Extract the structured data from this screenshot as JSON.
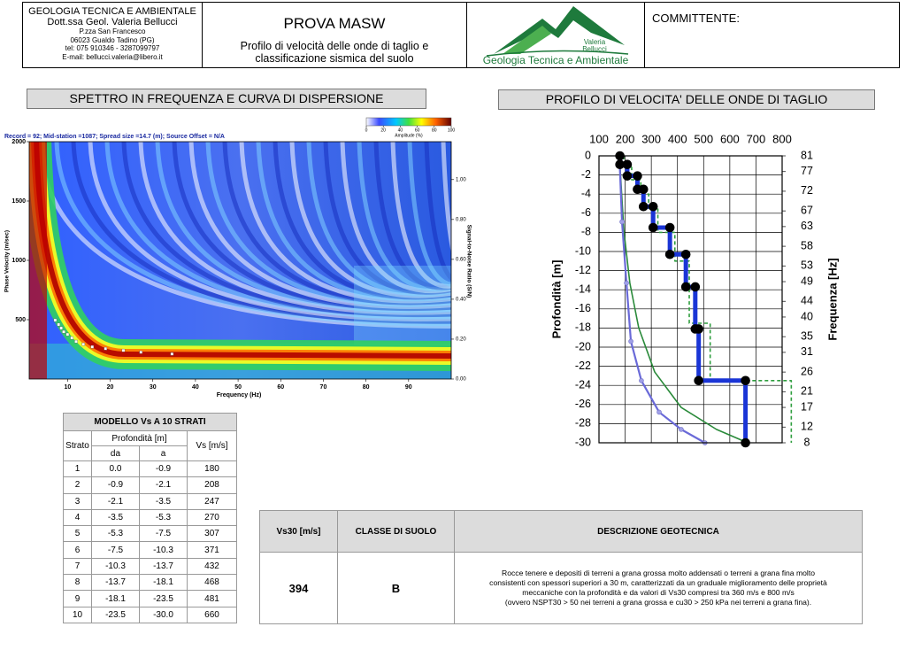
{
  "header": {
    "company": "GEOLOGIA TECNICA E AMBIENTALE",
    "person": "Dott.ssa Geol. Valeria Bellucci",
    "address1": "P.zza San Francesco",
    "address2": "06023 Gualdo Tadino (PG)",
    "phone": "tel: 075 910346 - 3287099797",
    "email": "E-mail: bellucci.valeria@libero.it",
    "title": "PROVA MASW",
    "subtitle_lines": [
      "Profilo di velocità delle onde di taglio e",
      "classificazione sismica del suolo"
    ],
    "logo_name_lines": [
      "Valeria",
      "Bellucci"
    ],
    "logo_text": "Geologia Tecnica e Ambientale",
    "client": "COMMITTENTE:"
  },
  "chart_data": [
    {
      "type": "heatmap",
      "title": "SPETTRO IN FREQUENZA E CURVA DI DISPERSIONE",
      "subtitle": "Record = 92; Mid-station =1087; Spread size =14.7 (m); Source Offset = N/A",
      "x_label": "Frequency (Hz)",
      "y_label": "Phase Velocity (m/sec)",
      "y2_label": "Signal-to-Noise Ratio (S/N)",
      "colorbar_label": "Amplitude (%)",
      "colorbar_ticks": [
        0,
        20,
        40,
        60,
        80,
        100
      ],
      "xlim": [
        1,
        100
      ],
      "xticks": [
        10,
        20,
        30,
        40,
        50,
        60,
        70,
        80,
        90
      ],
      "ylim": [
        0,
        2000
      ],
      "yticks": [
        500,
        1000,
        1500,
        2000
      ],
      "y2lim": [
        0,
        1.19
      ],
      "y2ticks": [
        {
          "value": 0,
          "label": "0.00"
        },
        {
          "value": 0.2,
          "label": "0.20"
        },
        {
          "value": 0.4,
          "label": "0.40"
        },
        {
          "value": 0.6,
          "label": "0.60"
        },
        {
          "value": 0.8,
          "label": "0.80"
        },
        {
          "value": 1,
          "label": "1.00"
        }
      ],
      "x": [
        7.1,
        7.9,
        8.5,
        9.1,
        10,
        11,
        12,
        13.7,
        15.8,
        18.9,
        23.1,
        27.2,
        34.5
      ],
      "values": [
        496,
        459,
        429,
        398,
        376,
        346,
        316,
        293,
        271,
        256,
        241,
        226,
        211
      ],
      "color": "#ffffff"
    },
    {
      "type": "line",
      "title": "PROFILO DI VELOCITA' DELLE ONDE DI TAGLIO",
      "y_label": "Profondità [m]",
      "y2_label": "Frequenza [Hz]",
      "xlim": [
        100,
        800
      ],
      "xticks": [
        100,
        200,
        300,
        400,
        500,
        600,
        700,
        800
      ],
      "ylim": [
        -30,
        0
      ],
      "yticks": [
        0,
        -2,
        -4,
        -6,
        -8,
        -10,
        -12,
        -14,
        -16,
        -18,
        -20,
        -22,
        -24,
        -26,
        -28,
        -30
      ],
      "y2lim": [
        8,
        81
      ],
      "y2ticks": [
        81,
        77,
        72,
        67,
        63,
        58,
        53,
        49,
        44,
        40,
        35,
        31,
        26,
        21,
        17,
        12,
        8
      ],
      "grid": true,
      "series": [
        {
          "color": "#2e9e3e",
          "dash": true,
          "x": [
            195,
            195,
            225,
            225,
            260,
            260,
            290,
            290,
            325,
            325,
            390,
            390,
            445,
            445,
            525,
            525,
            835,
            835
          ],
          "values": [
            0,
            -1.2,
            -1.2,
            -2.5,
            -2.5,
            -4,
            -4,
            -5.5,
            -5.5,
            -8,
            -8,
            -11,
            -11,
            -17.5,
            -17.5,
            -23.5,
            -23.5,
            -30
          ]
        },
        {
          "color": "#2a8a3a",
          "x": [
            178,
            195,
            218,
            252,
            313,
            414,
            549,
            668
          ],
          "values": [
            0,
            -7.8,
            -13.3,
            -18,
            -22.6,
            -26.3,
            -28.6,
            -30
          ]
        },
        {
          "color": "#6a6ad8",
          "marker": "small",
          "x": [
            178,
            188,
            205,
            222,
            262,
            330,
            414,
            505
          ],
          "values": [
            0,
            -6.9,
            -13.3,
            -19.4,
            -23.5,
            -26.8,
            -28.6,
            -30
          ]
        },
        {
          "color": "#1a35d6",
          "marker": "large",
          "x": [
            180,
            180,
            208,
            208,
            247,
            247,
            270,
            270,
            307,
            307,
            371,
            371,
            432,
            432,
            468,
            468,
            481,
            481,
            660,
            660
          ],
          "values": [
            0,
            -0.9,
            -0.9,
            -2.1,
            -2.1,
            -3.5,
            -3.5,
            -5.3,
            -5.3,
            -7.5,
            -7.5,
            -10.3,
            -10.3,
            -13.7,
            -13.7,
            -18.1,
            -18.1,
            -23.5,
            -23.5,
            -30
          ]
        }
      ]
    }
  ],
  "model_table": {
    "title": "MODELLO Vs A 10 STRATI",
    "headers": {
      "layer": "Strato",
      "depth": "Profondità [m]",
      "from": "da",
      "to": "a",
      "vs": "Vs [m/s]"
    },
    "rows": [
      [
        "1",
        "0.0",
        "-0.9",
        "180"
      ],
      [
        "2",
        "-0.9",
        "-2.1",
        "208"
      ],
      [
        "3",
        "-2.1",
        "-3.5",
        "247"
      ],
      [
        "4",
        "-3.5",
        "-5.3",
        "270"
      ],
      [
        "5",
        "-5.3",
        "-7.5",
        "307"
      ],
      [
        "6",
        "-7.5",
        "-10.3",
        "371"
      ],
      [
        "7",
        "-10.3",
        "-13.7",
        "432"
      ],
      [
        "8",
        "-13.7",
        "-18.1",
        "468"
      ],
      [
        "9",
        "-18.1",
        "-23.5",
        "481"
      ],
      [
        "10",
        "-23.5",
        "-30.0",
        "660"
      ]
    ]
  },
  "classification": {
    "headers": [
      "Vs30 [m/s]",
      "CLASSE DI SUOLO",
      "DESCRIZIONE GEOTECNICA"
    ],
    "vs30": "394",
    "class": "B",
    "description_lines": [
      "Rocce tenere e depositi di terreni a grana grossa molto addensati o terreni a grana fina molto",
      "consistenti con spessori superiori a 30 m, caratterizzati da un graduale miglioramento delle proprietà",
      "meccaniche con la profondità e da valori di Vs30 compresi tra 360 m/s e 800 m/s",
      "(ovvero NSPT30 > 50 nei terreni a grana grossa e cu30 > 250 kPa nei terreni a grana fina)."
    ]
  }
}
